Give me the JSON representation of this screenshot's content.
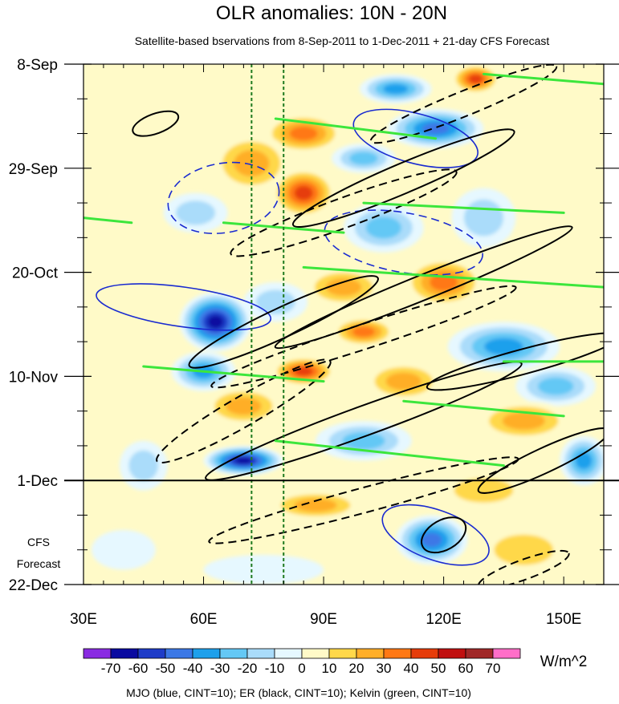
{
  "chart_data": {
    "type": "heatmap",
    "title": "OLR anomalies: 10N - 20N",
    "subtitle": "Satellite-based bservations from 8-Sep-2011 to 1-Dec-2011 + 21-day CFS Forecast",
    "xlabel": "",
    "ylabel": "",
    "xlim": [
      30,
      160
    ],
    "ylim_days": [
      0,
      105
    ],
    "x_ticks": [
      {
        "value": 30,
        "label": "30E"
      },
      {
        "value": 60,
        "label": "60E"
      },
      {
        "value": 90,
        "label": "90E"
      },
      {
        "value": 120,
        "label": "120E"
      },
      {
        "value": 150,
        "label": "150E"
      }
    ],
    "y_ticks": [
      {
        "day": 0,
        "label": "8-Sep"
      },
      {
        "day": 21,
        "label": "29-Sep"
      },
      {
        "day": 42,
        "label": "20-Oct"
      },
      {
        "day": 63,
        "label": "10-Nov"
      },
      {
        "day": 84,
        "label": "1-Dec"
      },
      {
        "day": 105,
        "label": "22-Dec"
      }
    ],
    "forecast_start_day": 84,
    "forecast_label_line1": "CFS",
    "forecast_label_line2": "Forecast",
    "reference_lons": [
      72,
      80
    ],
    "colorbar": {
      "units": "W/m^2",
      "levels": [
        -70,
        -60,
        -50,
        -40,
        -30,
        -20,
        -10,
        0,
        10,
        20,
        30,
        40,
        50,
        60,
        70
      ],
      "labels": [
        "-70",
        "-60",
        "-50",
        "-40",
        "-30",
        "-20",
        "-10",
        "0",
        "10",
        "20",
        "30",
        "40",
        "50",
        "60",
        "70"
      ],
      "colors": [
        "#8a2be2",
        "#0a0aa0",
        "#1e3cc8",
        "#3c78e6",
        "#1ea0ec",
        "#64c8f5",
        "#aadcfa",
        "#e6f8ff",
        "#fffac8",
        "#ffd84a",
        "#ffae28",
        "#ff7814",
        "#e63c0a",
        "#c01010",
        "#a02828",
        "#ff6ec8"
      ]
    },
    "legend_text": "MJO (blue, CINT=10); ER (black, CINT=10); Kelvin (green, CINT=10)",
    "anomaly_features": [
      {
        "lon": 58,
        "day": 7,
        "rx": 10,
        "ry": 6,
        "value": 10
      },
      {
        "lon": 85,
        "day": 14,
        "rx": 10,
        "ry": 4,
        "value": 40
      },
      {
        "lon": 108,
        "day": 5,
        "rx": 9,
        "ry": 3,
        "value": -40
      },
      {
        "lon": 128,
        "day": 3,
        "rx": 6,
        "ry": 3,
        "value": 45
      },
      {
        "lon": 118,
        "day": 13,
        "rx": 12,
        "ry": 4,
        "value": -50
      },
      {
        "lon": 100,
        "day": 19,
        "rx": 8,
        "ry": 3,
        "value": -30
      },
      {
        "lon": 72,
        "day": 20,
        "rx": 10,
        "ry": 6,
        "value": 30
      },
      {
        "lon": 85,
        "day": 26,
        "rx": 8,
        "ry": 5,
        "value": 45
      },
      {
        "lon": 58,
        "day": 30,
        "rx": 8,
        "ry": 4,
        "value": -20
      },
      {
        "lon": 105,
        "day": 33,
        "rx": 10,
        "ry": 5,
        "value": -30
      },
      {
        "lon": 130,
        "day": 31,
        "rx": 8,
        "ry": 6,
        "value": -20
      },
      {
        "lon": 120,
        "day": 44,
        "rx": 10,
        "ry": 5,
        "value": 40
      },
      {
        "lon": 95,
        "day": 45,
        "rx": 10,
        "ry": 4,
        "value": 25
      },
      {
        "lon": 63,
        "day": 52,
        "rx": 9,
        "ry": 6,
        "value": -70
      },
      {
        "lon": 78,
        "day": 48,
        "rx": 8,
        "ry": 4,
        "value": -20
      },
      {
        "lon": 100,
        "day": 54,
        "rx": 8,
        "ry": 3,
        "value": 35
      },
      {
        "lon": 135,
        "day": 57,
        "rx": 14,
        "ry": 5,
        "value": -40
      },
      {
        "lon": 60,
        "day": 62,
        "rx": 8,
        "ry": 4,
        "value": -40
      },
      {
        "lon": 85,
        "day": 62,
        "rx": 8,
        "ry": 3,
        "value": 50
      },
      {
        "lon": 110,
        "day": 64,
        "rx": 10,
        "ry": 4,
        "value": 30
      },
      {
        "lon": 70,
        "day": 69,
        "rx": 10,
        "ry": 4,
        "value": 30
      },
      {
        "lon": 148,
        "day": 65,
        "rx": 10,
        "ry": 4,
        "value": -30
      },
      {
        "lon": 140,
        "day": 72,
        "rx": 12,
        "ry": 4,
        "value": 30
      },
      {
        "lon": 100,
        "day": 76,
        "rx": 12,
        "ry": 4,
        "value": -30
      },
      {
        "lon": 70,
        "day": 80,
        "rx": 10,
        "ry": 3,
        "value": -70
      },
      {
        "lon": 45,
        "day": 81,
        "rx": 6,
        "ry": 5,
        "value": -20
      },
      {
        "lon": 130,
        "day": 86,
        "rx": 12,
        "ry": 4,
        "value": 20
      },
      {
        "lon": 155,
        "day": 80,
        "rx": 6,
        "ry": 5,
        "value": -40
      },
      {
        "lon": 88,
        "day": 89,
        "rx": 12,
        "ry": 3,
        "value": 25
      },
      {
        "lon": 117,
        "day": 96,
        "rx": 9,
        "ry": 5,
        "value": -50
      },
      {
        "lon": 140,
        "day": 98,
        "rx": 12,
        "ry": 5,
        "value": 15
      },
      {
        "lon": 40,
        "day": 98,
        "rx": 8,
        "ry": 4,
        "value": -10
      },
      {
        "lon": 75,
        "day": 102,
        "rx": 15,
        "ry": 3,
        "value": -10
      }
    ],
    "mjo_contours": [
      {
        "lon": 65,
        "day": 27,
        "rx": 14,
        "ry": 7,
        "angle": -10,
        "dashed": true
      },
      {
        "lon": 110,
        "day": 36,
        "rx": 20,
        "ry": 6,
        "angle": 10,
        "dashed": true
      },
      {
        "lon": 113,
        "day": 15,
        "rx": 16,
        "ry": 5,
        "angle": 15,
        "dashed": false
      },
      {
        "lon": 118,
        "day": 95,
        "rx": 14,
        "ry": 5,
        "angle": 20,
        "dashed": false
      },
      {
        "lon": 55,
        "day": 49,
        "rx": 22,
        "ry": 4,
        "angle": 8,
        "dashed": false
      }
    ],
    "er_contours": [
      {
        "lon": 110,
        "day": 23,
        "rx": 30,
        "ry": 3,
        "angle": -23,
        "dashed": false
      },
      {
        "lon": 115,
        "day": 45,
        "rx": 40,
        "ry": 2.5,
        "angle": -22,
        "dashed": false
      },
      {
        "lon": 100,
        "day": 72,
        "rx": 42,
        "ry": 3,
        "angle": -20,
        "dashed": false
      },
      {
        "lon": 140,
        "day": 60,
        "rx": 25,
        "ry": 2.5,
        "angle": -15,
        "dashed": false
      },
      {
        "lon": 145,
        "day": 80,
        "rx": 18,
        "ry": 2.5,
        "angle": -25,
        "dashed": false
      },
      {
        "lon": 80,
        "day": 52,
        "rx": 26,
        "ry": 3,
        "angle": -25,
        "dashed": false
      },
      {
        "lon": 120,
        "day": 95,
        "rx": 6,
        "ry": 3,
        "angle": -30,
        "dashed": false
      },
      {
        "lon": 48,
        "day": 12,
        "rx": 6,
        "ry": 2,
        "angle": -20,
        "dashed": false
      },
      {
        "lon": 95,
        "day": 30,
        "rx": 30,
        "ry": 3,
        "angle": -20,
        "dashed": true
      },
      {
        "lon": 100,
        "day": 55,
        "rx": 40,
        "ry": 2.5,
        "angle": -18,
        "dashed": true
      },
      {
        "lon": 100,
        "day": 88,
        "rx": 40,
        "ry": 2.5,
        "angle": -15,
        "dashed": true
      },
      {
        "lon": 70,
        "day": 70,
        "rx": 25,
        "ry": 3,
        "angle": -30,
        "dashed": true
      },
      {
        "lon": 140,
        "day": 102,
        "rx": 12,
        "ry": 2,
        "angle": -20,
        "dashed": true
      },
      {
        "lon": 125,
        "day": 8,
        "rx": 25,
        "ry": 2.5,
        "angle": -22,
        "dashed": true
      }
    ],
    "kelvin_lines": [
      {
        "lon1": 78,
        "day1": 11,
        "lon2": 118,
        "day2": 15
      },
      {
        "lon1": 100,
        "day1": 28,
        "lon2": 150,
        "day2": 30
      },
      {
        "lon1": 65,
        "day1": 32,
        "lon2": 95,
        "day2": 34
      },
      {
        "lon1": 85,
        "day1": 41,
        "lon2": 160,
        "day2": 45
      },
      {
        "lon1": 45,
        "day1": 61,
        "lon2": 90,
        "day2": 64
      },
      {
        "lon1": 110,
        "day1": 68,
        "lon2": 150,
        "day2": 71
      },
      {
        "lon1": 78,
        "day1": 76,
        "lon2": 135,
        "day2": 81
      },
      {
        "lon1": 130,
        "day1": 2,
        "lon2": 160,
        "day2": 4
      },
      {
        "lon1": 135,
        "day1": 60,
        "lon2": 160,
        "day2": 60
      },
      {
        "lon1": 30,
        "day1": 31,
        "lon2": 42,
        "day2": 32
      }
    ]
  }
}
